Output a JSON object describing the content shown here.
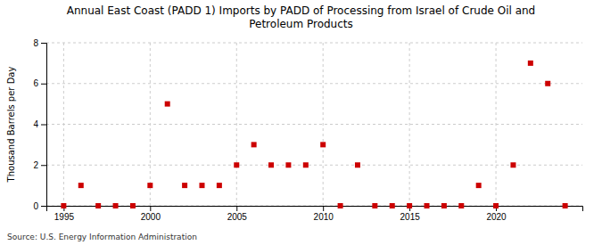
{
  "chart_data": {
    "type": "scatter",
    "title": "Annual East Coast (PADD 1) Imports by PADD of Processing from Israel of Crude Oil and\nPetroleum Products",
    "ylabel": "Thousand Barrels per Day",
    "annotations": [
      "Source: U.S. Energy Information Administration"
    ],
    "color": "#cc0000",
    "marker": "square",
    "grid": true,
    "xlim": [
      1994,
      2025
    ],
    "ylim": [
      0,
      8
    ],
    "xticks": [
      1995,
      2000,
      2005,
      2010,
      2015,
      2020
    ],
    "yticks": [
      0,
      2,
      4,
      6,
      8
    ],
    "x": [
      1995,
      1996,
      1997,
      1998,
      1999,
      2000,
      2001,
      2002,
      2003,
      2004,
      2005,
      2006,
      2007,
      2008,
      2009,
      2010,
      2011,
      2012,
      2013,
      2014,
      2015,
      2016,
      2017,
      2018,
      2019,
      2020,
      2021,
      2022,
      2023,
      2024
    ],
    "values": [
      0,
      1,
      0,
      0,
      0,
      1,
      5,
      1,
      1,
      1,
      2,
      3,
      2,
      2,
      2,
      3,
      0,
      2,
      0,
      0,
      0,
      0,
      0,
      0,
      1,
      0,
      2,
      7,
      6,
      0
    ]
  }
}
